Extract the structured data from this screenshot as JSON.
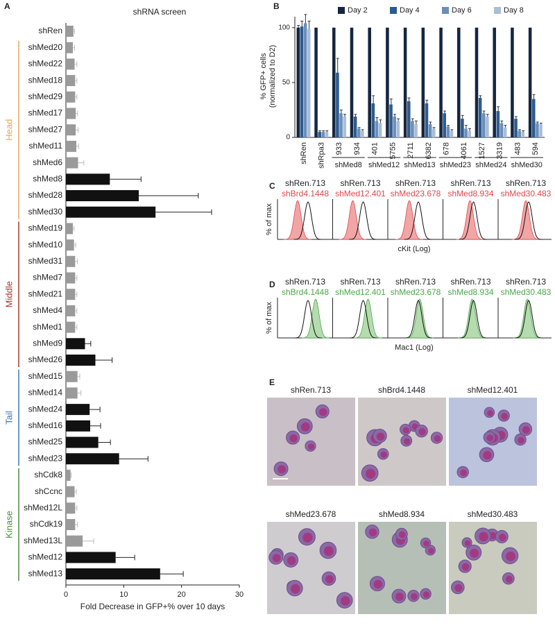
{
  "chart_data": [
    {
      "type": "hbar",
      "panel": "A",
      "title": "shRNA screen",
      "xlabel": "Fold Decrease in GFP+% over 10 days",
      "categories": [
        "shRen",
        "shMed20",
        "shMed22",
        "shMed18",
        "shMed29",
        "shMed17",
        "shMed27",
        "shMed11",
        "shMed6",
        "shMed8",
        "shMed28",
        "shMed30",
        "shMed19",
        "shMed10",
        "shMed31",
        "shMed7",
        "shMed21",
        "shMed4",
        "shMed1",
        "shMed9",
        "shMed26",
        "shMed15",
        "shMed14",
        "shMed24",
        "shMed16",
        "shMed25",
        "shMed23",
        "shCdk8",
        "shCcnc",
        "shMed12L",
        "shCdk19",
        "shMed13L",
        "shMed12",
        "shMed13"
      ],
      "values": [
        1.3,
        1.2,
        1.5,
        1.6,
        1.6,
        1.7,
        1.7,
        1.8,
        2.1,
        7.6,
        12.6,
        15.5,
        1.2,
        1.4,
        1.6,
        1.6,
        1.6,
        1.6,
        1.6,
        3.3,
        5.1,
        2.0,
        2.0,
        4.1,
        4.2,
        5.6,
        9.2,
        0.8,
        1.5,
        1.6,
        1.6,
        2.9,
        8.6,
        16.3
      ],
      "errors": [
        0.2,
        0.3,
        0.4,
        0.3,
        0.3,
        0.3,
        0.4,
        0.4,
        1.0,
        5.4,
        10.3,
        9.7,
        0.2,
        0.3,
        0.4,
        0.3,
        0.3,
        0.3,
        0.3,
        1.0,
        2.9,
        0.4,
        0.6,
        1.8,
        1.8,
        2.1,
        5.0,
        0.1,
        0.3,
        0.3,
        0.4,
        1.9,
        3.3,
        4.0
      ],
      "colors": [
        "#9a9a9a",
        "#9a9a9a",
        "#9a9a9a",
        "#9a9a9a",
        "#9a9a9a",
        "#9a9a9a",
        "#9a9a9a",
        "#9a9a9a",
        "#9a9a9a",
        "#111111",
        "#111111",
        "#111111",
        "#9a9a9a",
        "#9a9a9a",
        "#9a9a9a",
        "#9a9a9a",
        "#9a9a9a",
        "#9a9a9a",
        "#9a9a9a",
        "#111111",
        "#111111",
        "#9a9a9a",
        "#9a9a9a",
        "#111111",
        "#111111",
        "#111111",
        "#111111",
        "#9a9a9a",
        "#9a9a9a",
        "#9a9a9a",
        "#9a9a9a",
        "#9a9a9a",
        "#111111",
        "#111111"
      ],
      "groups": [
        {
          "name": "Head",
          "color": "#e8a35c",
          "range": [
            1,
            11
          ]
        },
        {
          "name": "Middle",
          "color": "#a8332f",
          "range": [
            12,
            20
          ]
        },
        {
          "name": "Tail",
          "color": "#3f76b4",
          "range": [
            21,
            26
          ]
        },
        {
          "name": "Kinase",
          "color": "#4f8a3a",
          "range": [
            27,
            33
          ]
        }
      ],
      "xlim": [
        0,
        30
      ],
      "xticks": [
        0,
        10,
        20,
        30
      ]
    },
    {
      "type": "grouped_bar",
      "panel": "B",
      "ylabel": [
        "% GFP+ cells",
        "(normalized to D2)"
      ],
      "categories": [
        "shRen",
        "shRpa3",
        "933",
        "934",
        "401",
        "5755",
        "2711",
        "6382",
        "678",
        "4061",
        "1527",
        "3319",
        "483",
        "594"
      ],
      "group_labels": [
        {
          "label": "shMed8",
          "range": [
            2,
            3
          ]
        },
        {
          "label": "shMed12",
          "range": [
            4,
            5
          ]
        },
        {
          "label": "shMed13",
          "range": [
            6,
            7
          ]
        },
        {
          "label": "shMed23",
          "range": [
            8,
            9
          ]
        },
        {
          "label": "shMed24",
          "range": [
            10,
            11
          ]
        },
        {
          "label": "shMed30",
          "range": [
            12,
            13
          ]
        }
      ],
      "series": [
        {
          "name": "Day 2",
          "color": "#16263f",
          "values": [
            100,
            100,
            100,
            100,
            100,
            100,
            100,
            100,
            100,
            100,
            100,
            100,
            100,
            100
          ],
          "errors": [
            2,
            0,
            0,
            0,
            0,
            0,
            0,
            0,
            0,
            0,
            0,
            0,
            0,
            0
          ]
        },
        {
          "name": "Day 4",
          "color": "#2c5b8f",
          "values": [
            101,
            5,
            59,
            19,
            31,
            30,
            33,
            31,
            22,
            17,
            36,
            24,
            17,
            35
          ],
          "errors": [
            5,
            1,
            13,
            2,
            7,
            5,
            3,
            3,
            2,
            3,
            2,
            4,
            2,
            4
          ]
        },
        {
          "name": "Day 6",
          "color": "#6b8eb9",
          "values": [
            104,
            5,
            22,
            8,
            15,
            19,
            15,
            12,
            10,
            8,
            22,
            13,
            6,
            13
          ],
          "errors": [
            8,
            1,
            3,
            1,
            3,
            2,
            2,
            2,
            1,
            3,
            2,
            2,
            1,
            1
          ]
        },
        {
          "name": "Day 8",
          "color": "#aabdd7",
          "values": [
            99,
            5,
            19,
            6,
            13,
            15,
            12,
            8,
            6,
            6,
            19,
            9,
            5,
            12
          ],
          "errors": [
            7,
            1,
            2,
            1,
            3,
            2,
            3,
            1,
            1,
            2,
            2,
            2,
            1,
            1
          ]
        }
      ],
      "ylim": [
        0,
        110
      ],
      "yticks": [
        0,
        50,
        100
      ]
    }
  ],
  "cytometry": [
    {
      "panel": "C",
      "ylabel": "% of max",
      "xlabel": "cKit (Log)",
      "control": "shRen.713",
      "color": "#e0474c",
      "fill": "#f2a5a5",
      "samples": [
        "shBrd4.1448",
        "shMed12.401",
        "shMed23.678",
        "shMed8.934",
        "shMed30.483"
      ]
    },
    {
      "panel": "D",
      "ylabel": "% of max",
      "xlabel": "Mac1 (Log)",
      "control": "shRen.713",
      "color": "#4aa84a",
      "fill": "#b4dcae",
      "samples": [
        "shBrd4.1448",
        "shMed12.401",
        "shMed23.678",
        "shMed8.934",
        "shMed30.483"
      ]
    }
  ],
  "micrographs": {
    "panel": "E",
    "captions": [
      "shRen.713",
      "shBrd4.1448",
      "shMed12.401",
      "shMed23.678",
      "shMed8.934",
      "shMed30.483"
    ]
  }
}
